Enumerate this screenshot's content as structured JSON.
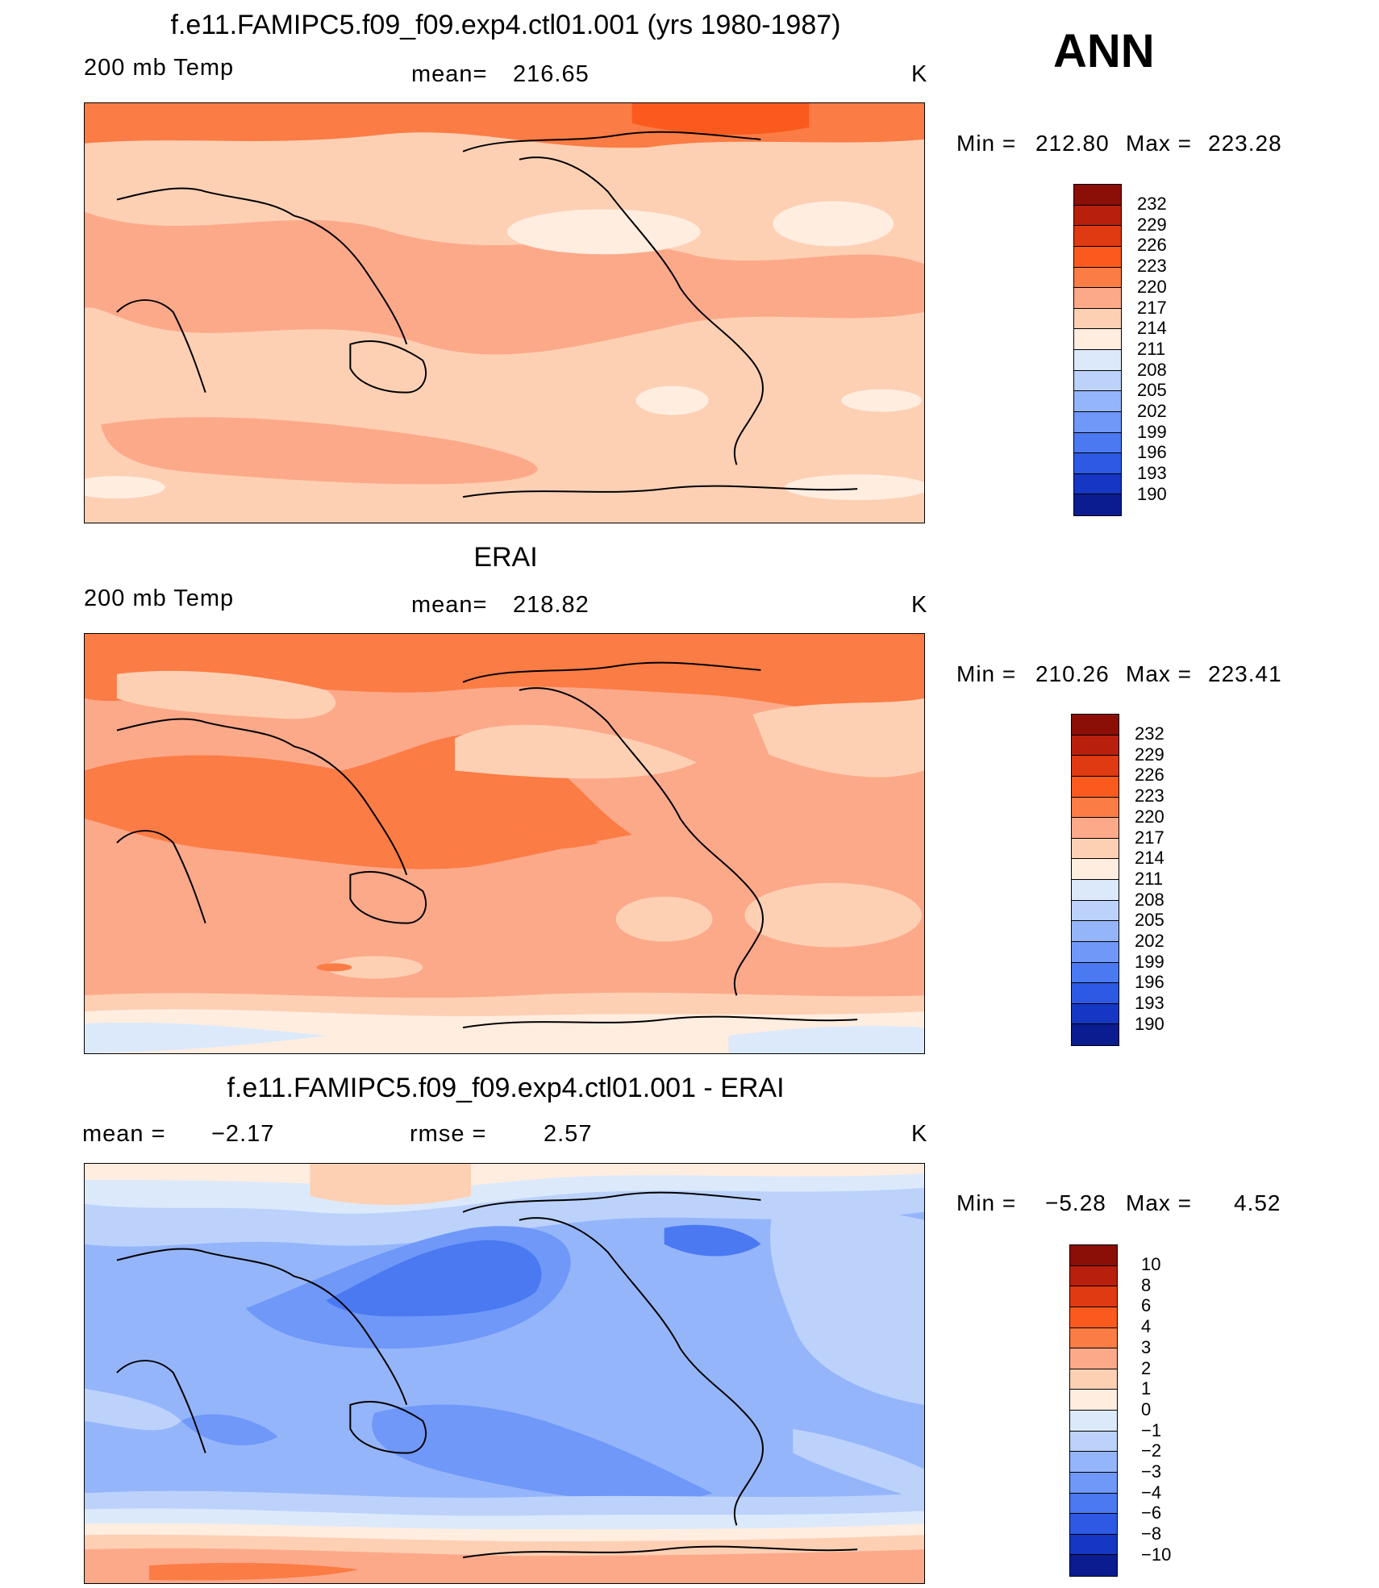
{
  "season": "ANN",
  "panel1": {
    "title": "f.e11.FAMIPC5.f09_f09.exp4.ctl01.001 (yrs 1980-1987)",
    "variable": "200 mb Temp",
    "mean_label": "mean=",
    "mean_value": "216.65",
    "units": "K",
    "min_label": "Min  =",
    "min_value": "212.80",
    "max_label": "Max  =",
    "max_value": "223.28"
  },
  "panel2": {
    "title": "ERAI",
    "variable": "200 mb Temp",
    "mean_label": "mean=",
    "mean_value": "218.82",
    "units": "K",
    "min_label": "Min  =",
    "min_value": "210.26",
    "max_label": "Max  =",
    "max_value": "223.41"
  },
  "panel3": {
    "title": "f.e11.FAMIPC5.f09_f09.exp4.ctl01.001 - ERAI",
    "mean_label": "mean =",
    "mean_value": "−2.17",
    "rmse_label": "rmse =",
    "rmse_value": "2.57",
    "units": "K",
    "min_label": "Min  =",
    "min_value": "−5.28",
    "max_label": "Max  =",
    "max_value": "4.52"
  },
  "colorbar_abs": {
    "labels": [
      "232",
      "229",
      "226",
      "223",
      "220",
      "217",
      "214",
      "211",
      "208",
      "205",
      "202",
      "199",
      "196",
      "193",
      "190"
    ],
    "colors": [
      "#8b0e07",
      "#b8200d",
      "#df3a12",
      "#fb5a1e",
      "#fc7c45",
      "#fca98a",
      "#fdd0b4",
      "#ffede0",
      "#dce9fb",
      "#bcd2fb",
      "#95b5fb",
      "#6f98f8",
      "#4a79f2",
      "#2d59e4",
      "#1537c3",
      "#0a1c8f"
    ]
  },
  "colorbar_diff": {
    "labels": [
      "10",
      "8",
      "6",
      "4",
      "3",
      "2",
      "1",
      "0",
      "−1",
      "−2",
      "−3",
      "−4",
      "−6",
      "−8",
      "−10"
    ],
    "colors": [
      "#8b0e07",
      "#b8200d",
      "#df3a12",
      "#fb5a1e",
      "#fc7c45",
      "#fca98a",
      "#fdd0b4",
      "#ffede0",
      "#dce9fb",
      "#bcd2fb",
      "#95b5fb",
      "#6f98f8",
      "#4a79f2",
      "#2d59e4",
      "#1537c3",
      "#0a1c8f"
    ]
  }
}
